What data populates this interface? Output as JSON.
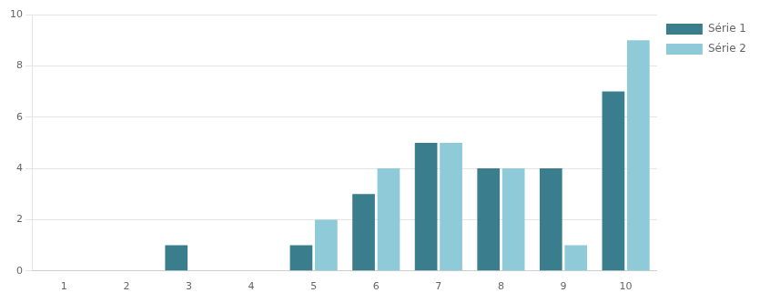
{
  "chart_data": {
    "type": "bar",
    "categories": [
      1,
      2,
      3,
      4,
      5,
      6,
      7,
      8,
      9,
      10
    ],
    "series": [
      {
        "name": "Série 1",
        "color": "#3A7D8C",
        "values": [
          0,
          0,
          1,
          0,
          1,
          3,
          5,
          4,
          4,
          7
        ]
      },
      {
        "name": "Série 2",
        "color": "#8ECAD8",
        "values": [
          0,
          0,
          0,
          0,
          2,
          4,
          5,
          4,
          1,
          9
        ]
      }
    ],
    "ylim": [
      0,
      10
    ],
    "yticks": [
      0,
      2,
      4,
      6,
      8,
      10
    ],
    "grid": true,
    "legend": "right"
  }
}
